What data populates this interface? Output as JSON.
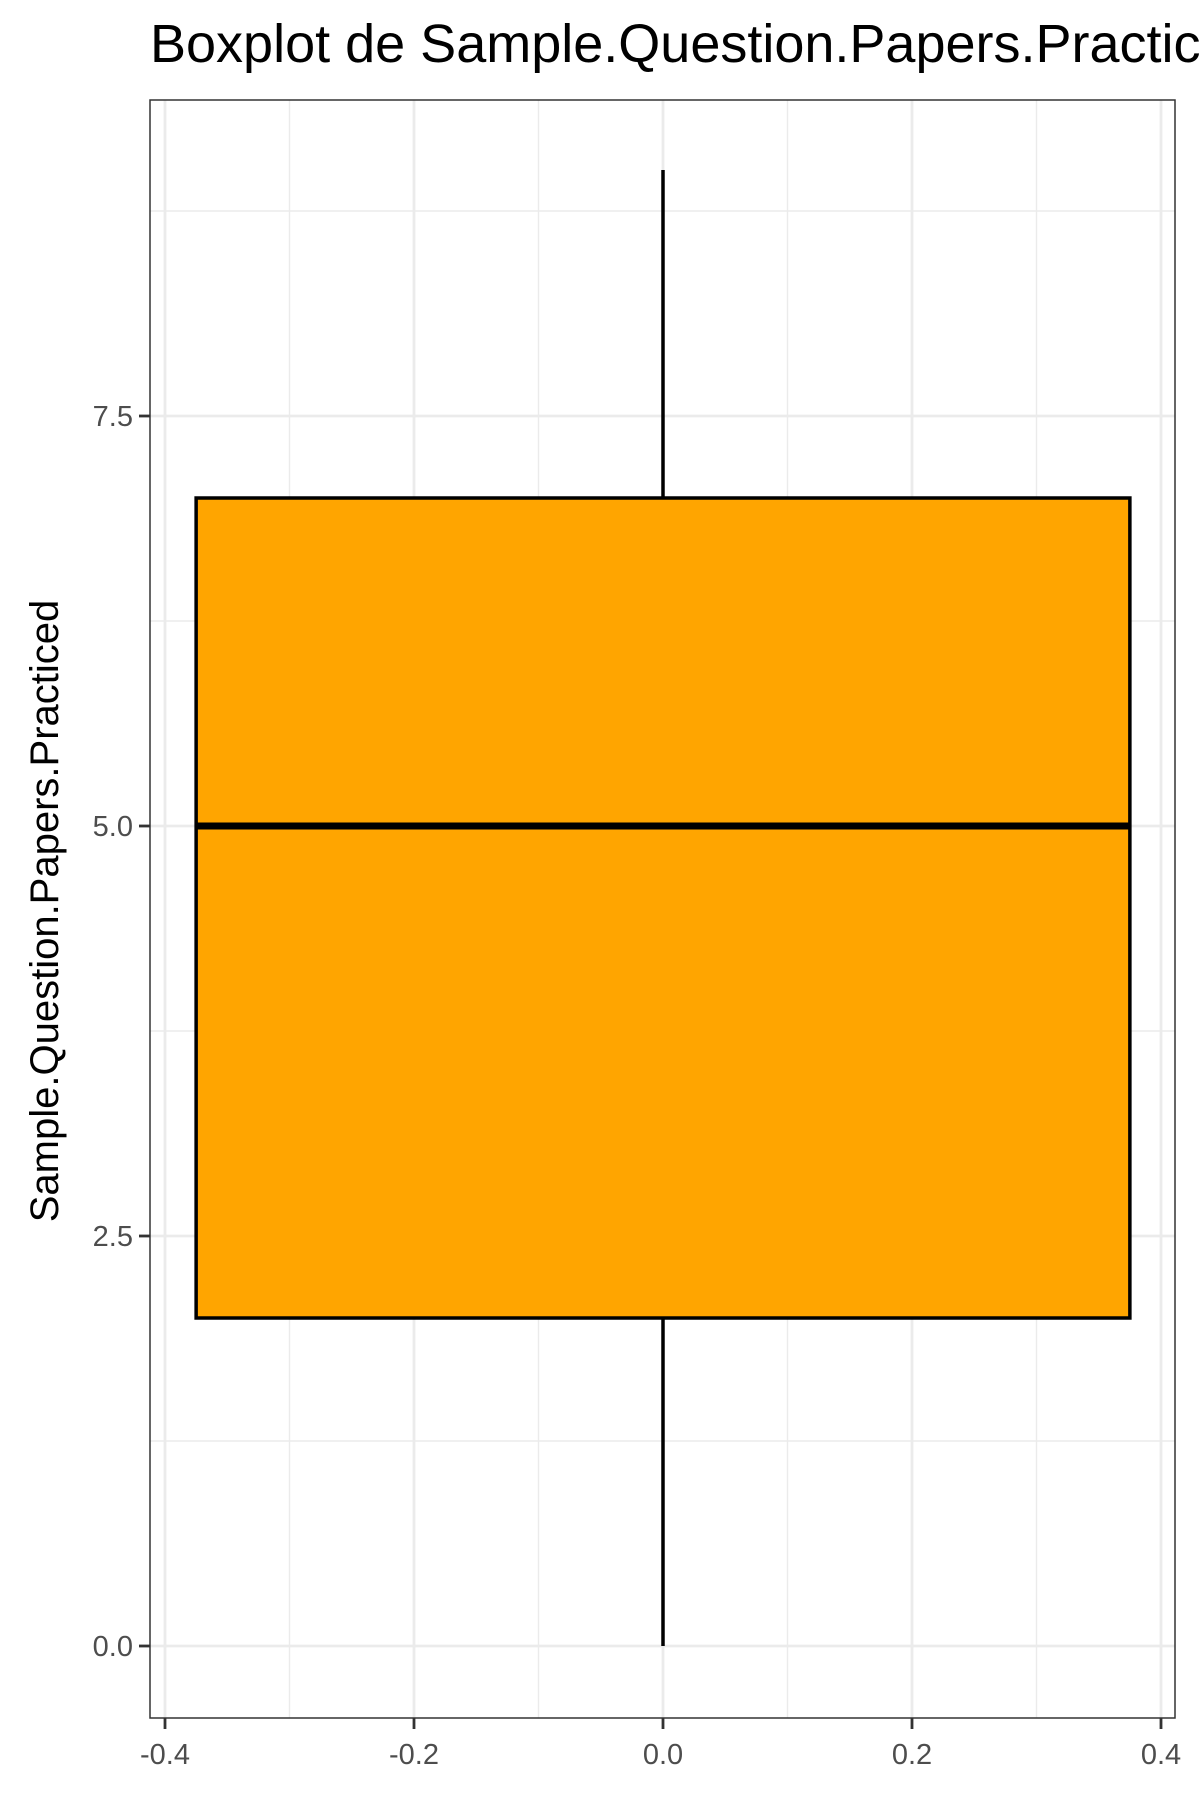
{
  "chart_data": {
    "type": "boxplot",
    "title": "Boxplot de Sample.Question.Papers.Practiced",
    "xlabel": "",
    "ylabel": "Sample.Question.Papers.Practiced",
    "xlim": [
      -0.4,
      0.4
    ],
    "ylim": [
      0,
      9
    ],
    "x_ticks": [
      -0.4,
      -0.2,
      0.0,
      0.2,
      0.4
    ],
    "x_tick_labels": [
      "-0.4",
      "-0.2",
      "0.0",
      "0.2",
      "0.4"
    ],
    "y_ticks": [
      0.0,
      2.5,
      5.0,
      7.5
    ],
    "y_tick_labels": [
      "0.0",
      "2.5",
      "5.0",
      "7.5"
    ],
    "grid": true,
    "box": {
      "x_center": 0.0,
      "x_left": -0.375,
      "x_right": 0.375,
      "min": 0,
      "q1": 2,
      "median": 5,
      "q3": 7,
      "max": 9
    },
    "colors": {
      "box_fill": "#FFA500",
      "box_stroke": "#000000",
      "grid": "#EBEBEB",
      "panel_border": "#333333",
      "tick_text": "#4D4D4D"
    }
  }
}
